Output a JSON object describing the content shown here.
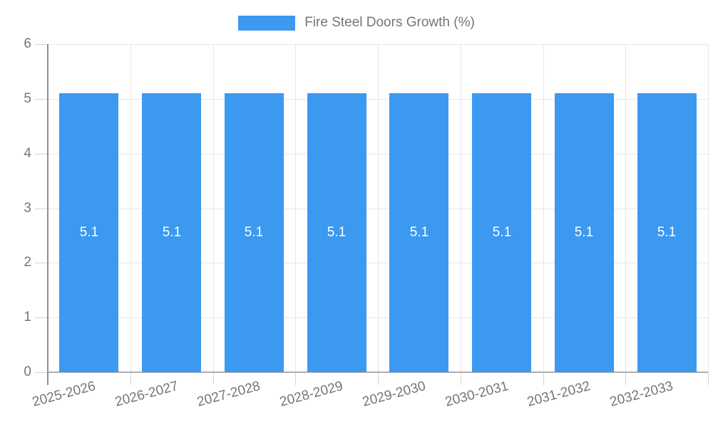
{
  "legend": {
    "label": "Fire Steel Doors Growth (%)"
  },
  "colors": {
    "bar": "#3B99F0",
    "text": "#757575",
    "grid": "#E7E7E7",
    "tick": "#D2D2D2",
    "axis": "#8F8F8F",
    "baseline": "#ADADAD",
    "bar_label": "#FFFFFF",
    "background": "#FFFFFF"
  },
  "chart_data": {
    "type": "bar",
    "title": "Fire Steel Doors Growth (%)",
    "categories": [
      "2025-2026",
      "2026-2027",
      "2027-2028",
      "2028-2029",
      "2029-2030",
      "2030-2031",
      "2031-2032",
      "2032-2033"
    ],
    "values": [
      5.1,
      5.1,
      5.1,
      5.1,
      5.1,
      5.1,
      5.1,
      5.1
    ],
    "bar_labels": [
      "5.1",
      "5.1",
      "5.1",
      "5.1",
      "5.1",
      "5.1",
      "5.1",
      "5.1"
    ],
    "xlabel": "",
    "ylabel": "",
    "ylim": [
      0,
      6
    ],
    "yticks": [
      0,
      1,
      2,
      3,
      4,
      5,
      6
    ],
    "grid": true,
    "legend_position": "top",
    "bar_label_position": "center"
  }
}
